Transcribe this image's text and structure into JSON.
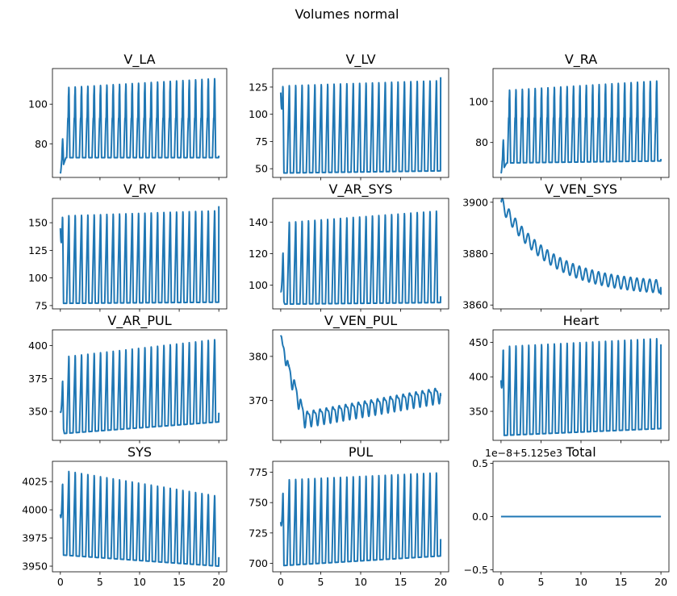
{
  "figure": {
    "suptitle": "Volumes normal",
    "line_color": "#1f77b4"
  },
  "chart_data": [
    {
      "type": "line",
      "title": "V_LA",
      "xlim": [
        -1,
        21
      ],
      "ylim": [
        63,
        118
      ],
      "yticks": [
        80,
        100
      ],
      "xticks": [
        0,
        5,
        10,
        15,
        20
      ],
      "show_xticklabels": false,
      "series": [
        {
          "wave": {
            "kind": "osc",
            "period": 0.8,
            "start": 65,
            "low": [
              73,
              73
            ],
            "high": [
              110,
              115
            ],
            "end": 74,
            "mid": [
              90,
              93,
              88
            ],
            "ramp": 0.7
          }
        }
      ]
    },
    {
      "type": "line",
      "title": "V_LV",
      "xlim": [
        -1,
        21
      ],
      "ylim": [
        42,
        142
      ],
      "yticks": [
        50,
        75,
        100,
        125
      ],
      "xticks": [
        0,
        5,
        10,
        15,
        20
      ],
      "show_xticklabels": false,
      "series": [
        {
          "wave": {
            "kind": "osc",
            "period": 0.8,
            "start": 120,
            "low": [
              46,
              48
            ],
            "high": [
              130,
              135
            ],
            "end": 134,
            "mid": null,
            "ramp": 0.3
          }
        }
      ]
    },
    {
      "type": "line",
      "title": "V_RA",
      "xlim": [
        -1,
        21
      ],
      "ylim": [
        63,
        116
      ],
      "yticks": [
        80,
        100
      ],
      "xticks": [
        0,
        5,
        10,
        15,
        20
      ],
      "show_xticklabels": false,
      "series": [
        {
          "wave": {
            "kind": "osc",
            "period": 0.8,
            "start": 65,
            "low": [
              70,
              71
            ],
            "high": [
              107,
              112
            ],
            "end": 72,
            "mid": [
              88,
              92,
              90
            ],
            "ramp": 0.7
          }
        }
      ]
    },
    {
      "type": "line",
      "title": "V_RV",
      "xlim": [
        -1,
        21
      ],
      "ylim": [
        72,
        172
      ],
      "yticks": [
        75,
        100,
        125,
        150
      ],
      "xticks": [
        0,
        5,
        10,
        15,
        20
      ],
      "show_xticklabels": false,
      "series": [
        {
          "wave": {
            "kind": "osc",
            "period": 0.8,
            "start": 145,
            "low": [
              77,
              78
            ],
            "high": [
              160,
              165
            ],
            "end": 165,
            "mid": null,
            "ramp": 0.3
          }
        }
      ]
    },
    {
      "type": "line",
      "title": "V_AR_SYS",
      "xlim": [
        -1,
        21
      ],
      "ylim": [
        85,
        155
      ],
      "yticks": [
        100,
        120,
        140
      ],
      "xticks": [
        0,
        5,
        10,
        15,
        20
      ],
      "show_xticklabels": false,
      "series": [
        {
          "wave": {
            "kind": "osc",
            "period": 0.8,
            "start": 96,
            "low": [
              88,
              89
            ],
            "high": [
              142,
              150
            ],
            "end": 93,
            "mid": null,
            "ramp": 0.5
          }
        }
      ]
    },
    {
      "type": "line",
      "title": "V_VEN_SYS",
      "xlim": [
        -1,
        21
      ],
      "ylim": [
        3858.5,
        3901.5
      ],
      "yticks": [
        3860,
        3880,
        3900
      ],
      "xticks": [
        0,
        5,
        10,
        15,
        20
      ],
      "show_xticklabels": false,
      "series": [
        {
          "wave": {
            "kind": "decay",
            "period": 0.8,
            "start": 3900,
            "final": 3866,
            "tau": 6,
            "amp": 2.5,
            "end": 3864
          }
        }
      ]
    },
    {
      "type": "line",
      "title": "V_AR_PUL",
      "xlim": [
        -1,
        21
      ],
      "ylim": [
        328,
        412
      ],
      "yticks": [
        350,
        375,
        400
      ],
      "xticks": [
        0,
        5,
        10,
        15,
        20
      ],
      "show_xticklabels": false,
      "series": [
        {
          "wave": {
            "kind": "osc",
            "period": 0.8,
            "start": 350,
            "low": [
              333,
              342
            ],
            "high": [
              394,
              408
            ],
            "end": 349,
            "mid": null,
            "ramp": 0.5
          }
        }
      ]
    },
    {
      "type": "line",
      "title": "V_VEN_PUL",
      "xlim": [
        -1,
        21
      ],
      "ylim": [
        361,
        386
      ],
      "yticks": [
        370,
        380
      ],
      "xticks": [
        0,
        5,
        10,
        15,
        20
      ],
      "show_xticklabels": false,
      "series": [
        {
          "wave": {
            "kind": "vp",
            "period": 0.8
          }
        }
      ]
    },
    {
      "type": "line",
      "title": "Heart",
      "xlim": [
        -1,
        21
      ],
      "ylim": [
        308,
        468
      ],
      "yticks": [
        350,
        400,
        450
      ],
      "xticks": [
        0,
        5,
        10,
        15,
        20
      ],
      "show_xticklabels": false,
      "series": [
        {
          "wave": {
            "kind": "osc",
            "period": 0.8,
            "start": 395,
            "low": [
              315,
              325
            ],
            "high": [
              450,
              462
            ],
            "end": 447,
            "mid": null,
            "ramp": 0.3
          }
        }
      ]
    },
    {
      "type": "line",
      "title": "SYS",
      "xlim": [
        -1,
        21
      ],
      "ylim": [
        3945,
        4043
      ],
      "yticks": [
        3950,
        3975,
        4000,
        4025
      ],
      "xticks": [
        0,
        5,
        10,
        15,
        20
      ],
      "show_xticklabels": true,
      "series": [
        {
          "wave": {
            "kind": "osc",
            "period": 0.8,
            "start": 3996,
            "low": [
              3960,
              3950
            ],
            "high": [
              4039,
              4015
            ],
            "end": 3958,
            "mid": null,
            "ramp": 0.4
          }
        }
      ]
    },
    {
      "type": "line",
      "title": "PUL",
      "xlim": [
        -1,
        21
      ],
      "ylim": [
        693,
        784
      ],
      "yticks": [
        700,
        725,
        750,
        775
      ],
      "xticks": [
        0,
        5,
        10,
        15,
        20
      ],
      "show_xticklabels": true,
      "series": [
        {
          "wave": {
            "kind": "osc",
            "period": 0.8,
            "start": 734,
            "low": [
              698,
              706
            ],
            "high": [
              772,
              778
            ],
            "end": 720,
            "mid": null,
            "ramp": 0.4
          }
        }
      ]
    },
    {
      "type": "line",
      "title": "Total",
      "xlim": [
        -1,
        21
      ],
      "ylim": [
        -0.52,
        0.52
      ],
      "yticks": [
        -0.5,
        0.0,
        0.5
      ],
      "ytick_labels": [
        "−0.5",
        "0.0",
        "0.5"
      ],
      "offset_text": "1e−8+5.125e3",
      "xticks": [
        0,
        5,
        10,
        15,
        20
      ],
      "show_xticklabels": true,
      "series": [
        {
          "wave": {
            "kind": "flat",
            "value": 0
          }
        }
      ]
    }
  ]
}
